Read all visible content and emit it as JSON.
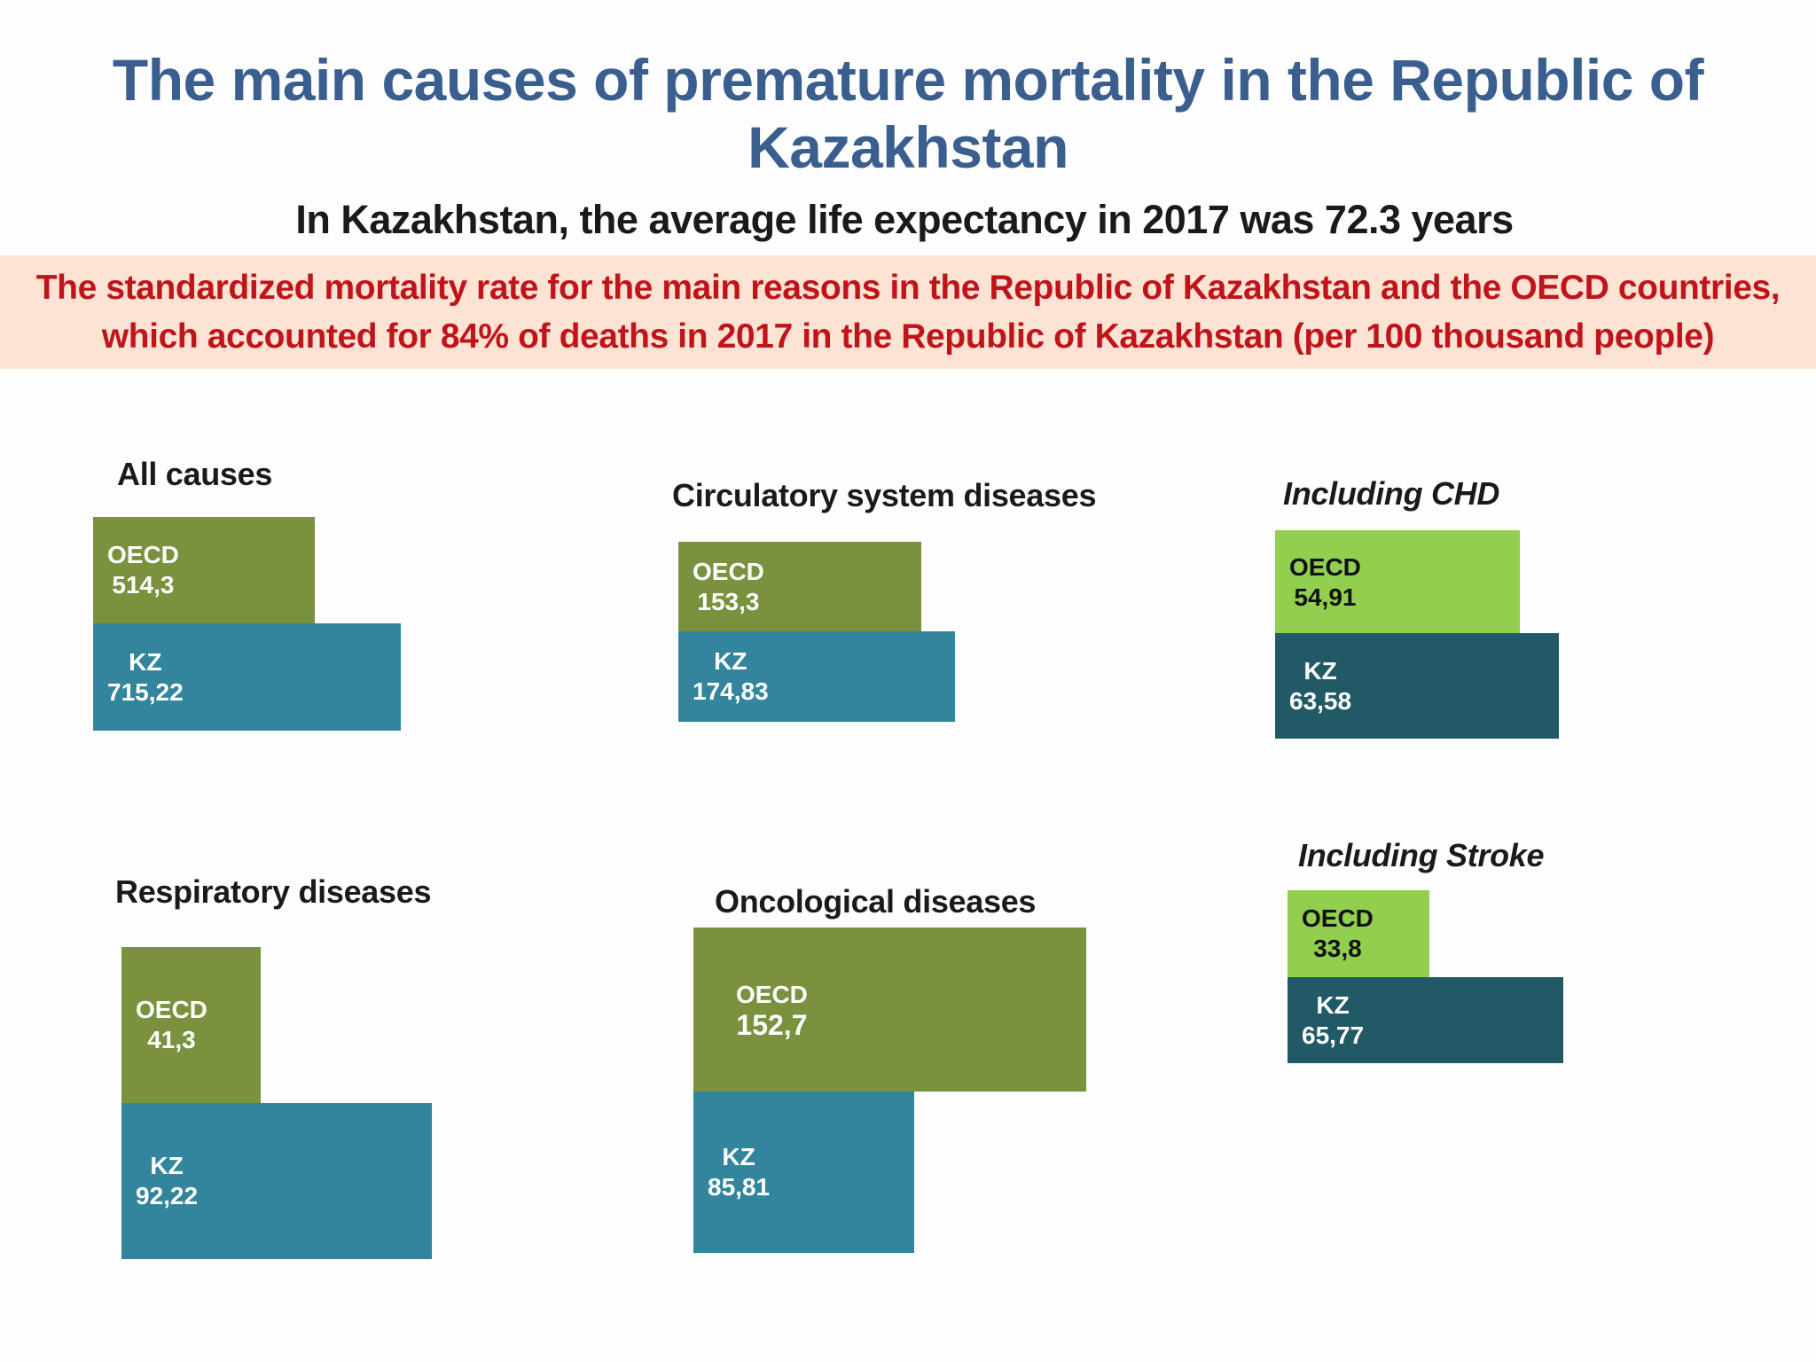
{
  "title": "The main causes of premature mortality in the Republic of Kazakhstan",
  "subtitle": "In Kazakhstan, the average life expectancy in 2017 was 72.3 years",
  "banner": {
    "line1": "The standardized mortality rate for the main reasons in the Republic of Kazakhstan and the OECD countries,",
    "line2": "which accounted for 84% of deaths in 2017 in the Republic of Kazakhstan (per 100 thousand people)"
  },
  "colors": {
    "oecd_olive": "#7a913d",
    "kz_teal": "#32859c",
    "oecd_lightgreen": "#92cf4f",
    "kz_darkteal": "#215966",
    "title_blue": "#3a5f8f",
    "banner_red": "#c0141b",
    "banner_bg": "#fde3d4"
  },
  "chart_data": [
    {
      "type": "bar",
      "title": "All causes",
      "series": [
        {
          "name": "OECD",
          "value": 514.3,
          "label": "514,3"
        },
        {
          "name": "KZ",
          "value": 715.22,
          "label": "715,22"
        }
      ]
    },
    {
      "type": "bar",
      "title": "Circulatory system diseases",
      "series": [
        {
          "name": "OECD",
          "value": 153.3,
          "label": "153,3"
        },
        {
          "name": "KZ",
          "value": 174.83,
          "label": "174,83"
        }
      ]
    },
    {
      "type": "bar",
      "title": "Including CHD",
      "series": [
        {
          "name": "OECD",
          "value": 54.91,
          "label": "54,91"
        },
        {
          "name": "KZ",
          "value": 63.58,
          "label": "63,58"
        }
      ]
    },
    {
      "type": "bar",
      "title": "Respiratory diseases",
      "series": [
        {
          "name": "OECD",
          "value": 41.3,
          "label": "41,3"
        },
        {
          "name": "KZ",
          "value": 92.22,
          "label": "92,22"
        }
      ]
    },
    {
      "type": "bar",
      "title": "Oncological diseases",
      "series": [
        {
          "name": "OECD",
          "value": 152.7,
          "label": "152,7"
        },
        {
          "name": "KZ",
          "value": 85.81,
          "label": "85,81"
        }
      ]
    },
    {
      "type": "bar",
      "title": "Including Stroke",
      "series": [
        {
          "name": "OECD",
          "value": 33.8,
          "label": "33,8"
        },
        {
          "name": "KZ",
          "value": 65.77,
          "label": "65,77"
        }
      ]
    }
  ]
}
